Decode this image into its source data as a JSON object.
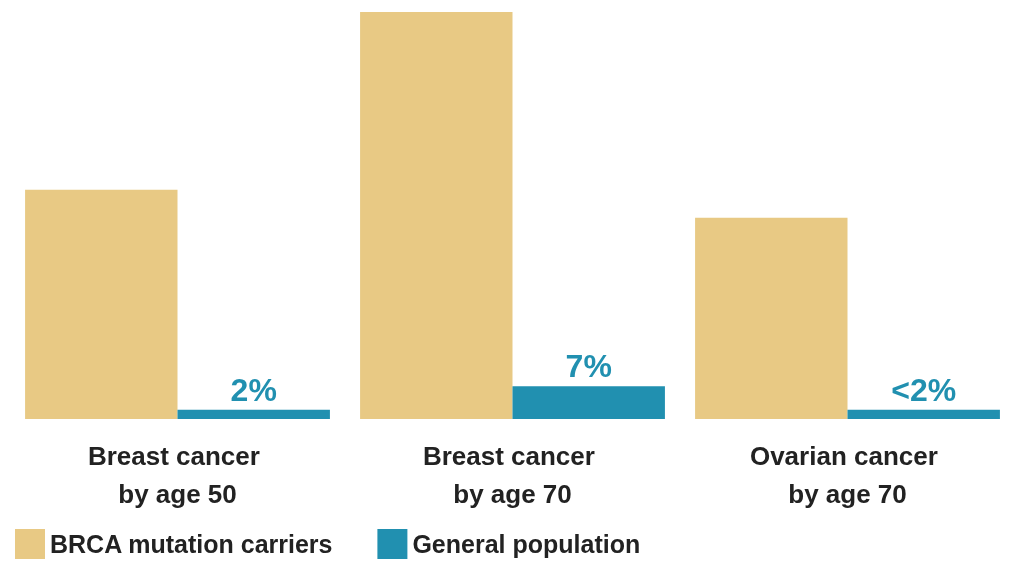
{
  "chart_data": {
    "type": "bar",
    "categories": [
      "Breast cancer by age 50",
      "Breast cancer by age 70",
      "Ovarian cancer by age 70"
    ],
    "series": [
      {
        "name": "BRCA mutation carriers",
        "color": "#e8c984",
        "values": [
          49,
          87,
          43
        ]
      },
      {
        "name": "General population",
        "color": "#2190b0",
        "values": [
          2,
          7,
          2
        ],
        "value_labels": [
          "2%",
          "7%",
          "<2%"
        ]
      }
    ],
    "ylim": [
      0,
      87
    ],
    "tick_labels": "x",
    "legend": "bottom left",
    "grid": false
  }
}
